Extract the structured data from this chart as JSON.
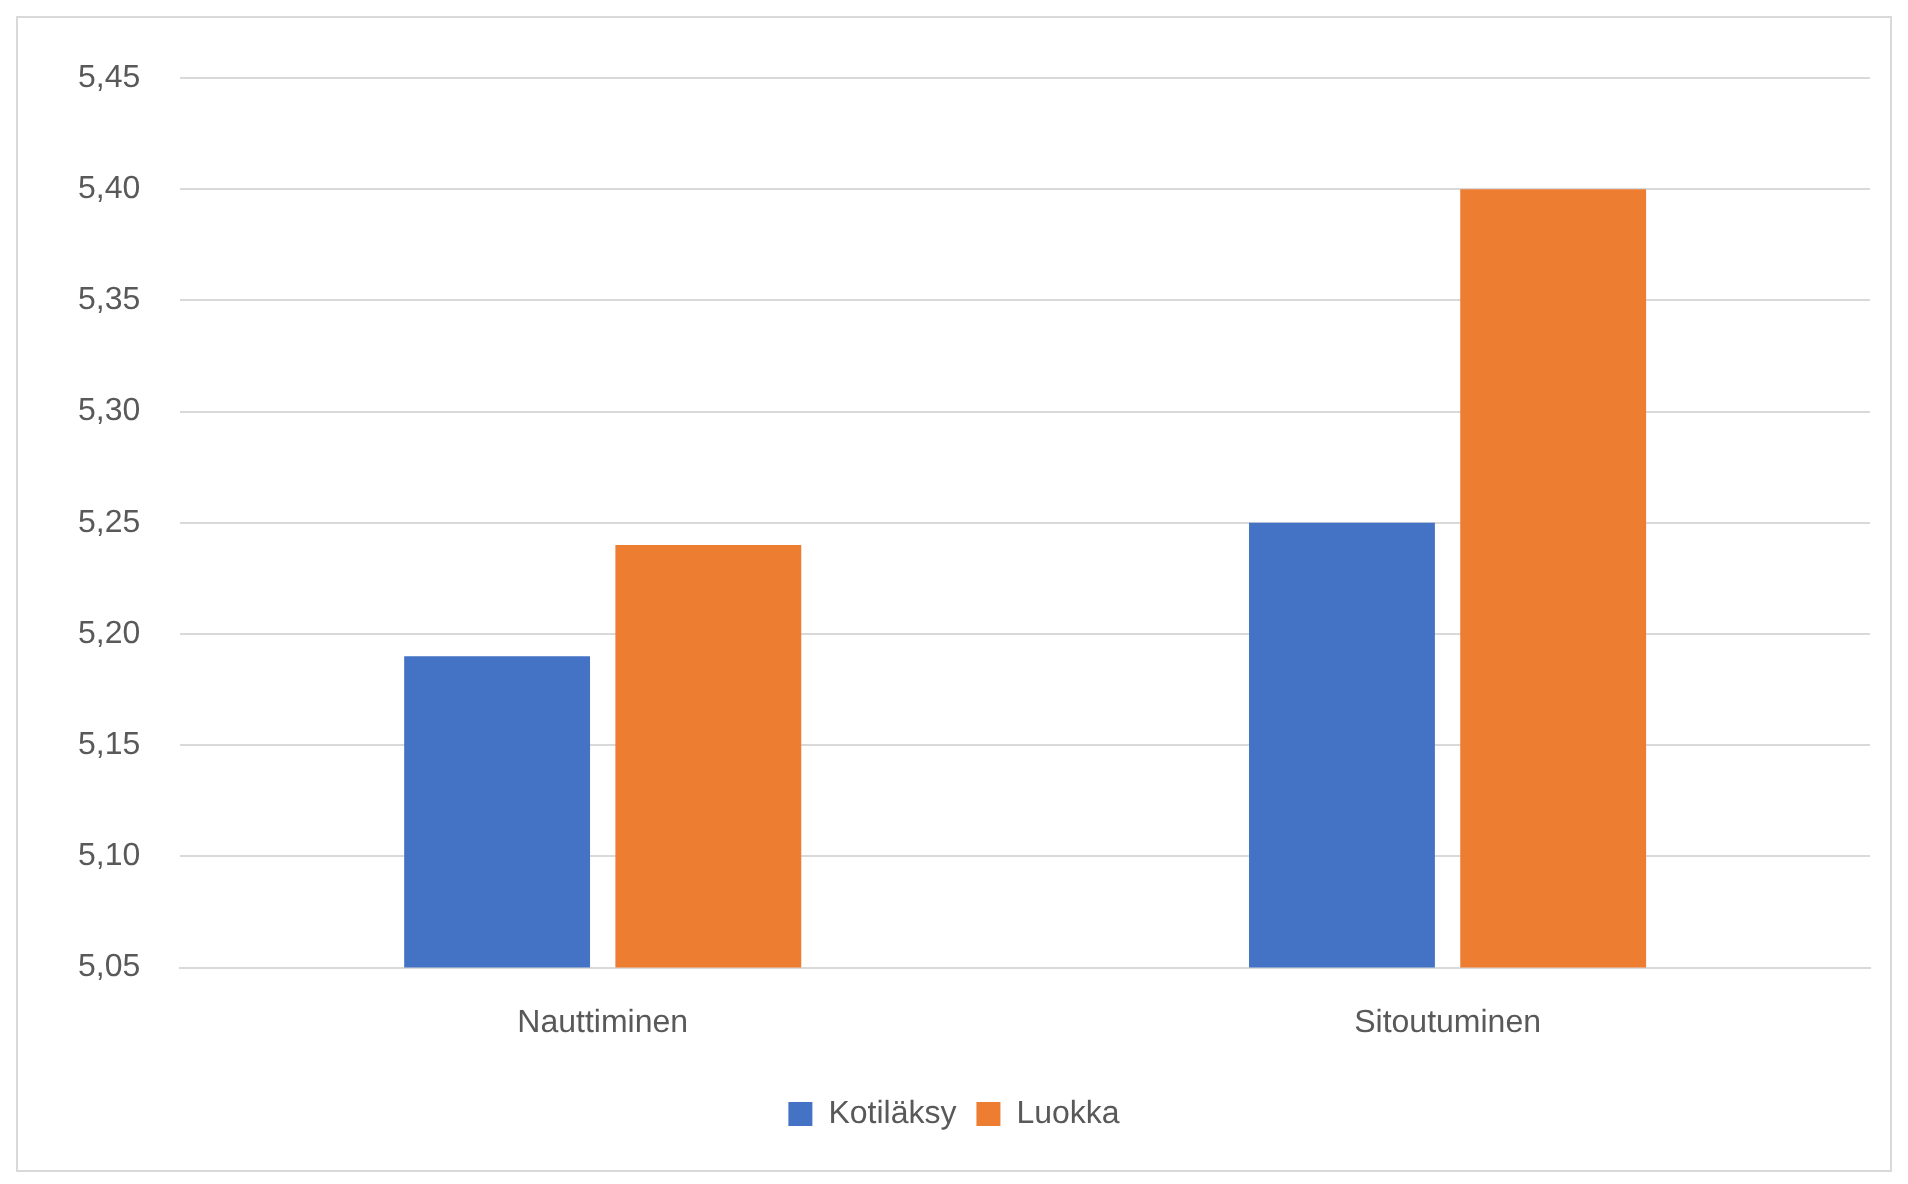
{
  "chart_data": {
    "type": "bar",
    "categories": [
      "Nauttiminen",
      "Sitoutuminen"
    ],
    "series": [
      {
        "name": "Kotiläksy",
        "color": "#4472c4",
        "values": [
          5.19,
          5.25
        ]
      },
      {
        "name": "Luokka",
        "color": "#ed7d31",
        "values": [
          5.24,
          5.4
        ]
      }
    ],
    "ylim": [
      5.05,
      5.45
    ],
    "yticks": [
      {
        "value": 5.05,
        "label": "5,05"
      },
      {
        "value": 5.1,
        "label": "5,10"
      },
      {
        "value": 5.15,
        "label": "5,15"
      },
      {
        "value": 5.2,
        "label": "5,20"
      },
      {
        "value": 5.25,
        "label": "5,25"
      },
      {
        "value": 5.3,
        "label": "5,30"
      },
      {
        "value": 5.35,
        "label": "5,35"
      },
      {
        "value": 5.4,
        "label": "5,40"
      },
      {
        "value": 5.45,
        "label": "5,45"
      }
    ],
    "grid": "y",
    "legend": "bottom"
  }
}
